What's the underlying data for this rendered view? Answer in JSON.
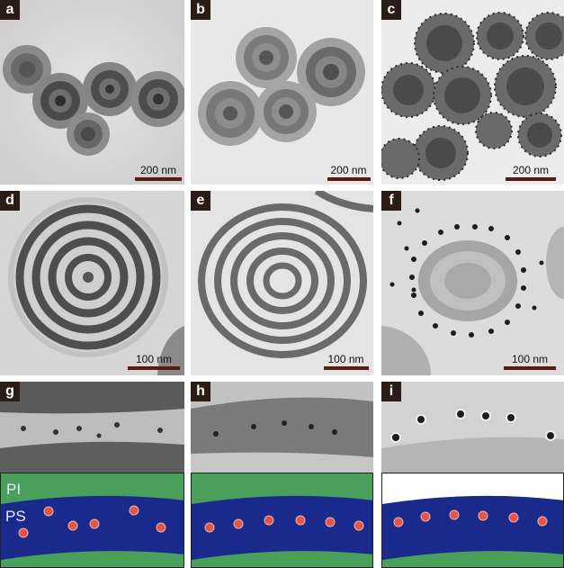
{
  "panels": [
    {
      "label": "a",
      "scale": "200 nm"
    },
    {
      "label": "b",
      "scale": "200 nm"
    },
    {
      "label": "c",
      "scale": "200 nm"
    },
    {
      "label": "d",
      "scale": "100 nm"
    },
    {
      "label": "e",
      "scale": "100 nm"
    },
    {
      "label": "f",
      "scale": "100 nm"
    },
    {
      "label": "g"
    },
    {
      "label": "h"
    },
    {
      "label": "i"
    }
  ],
  "schematic": {
    "layer_top": "PI",
    "layer_middle": "PS"
  },
  "colors": {
    "pi": "#4aa05a",
    "ps": "#1a2a8c",
    "particle": "#e2554a",
    "label_bg": "#2a1c17",
    "scale_bar": "#5a1a14"
  }
}
